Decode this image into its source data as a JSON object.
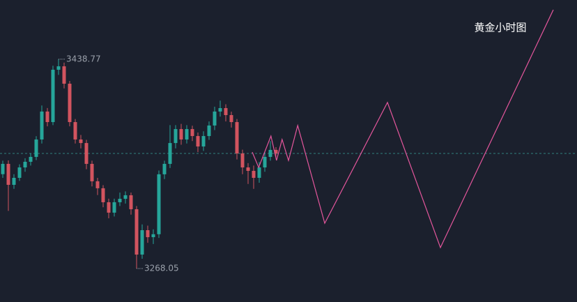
{
  "chart_data": {
    "type": "candlestick",
    "title": "黄金小时图",
    "x": [
      0,
      1,
      2,
      3,
      4,
      5,
      6,
      7,
      8,
      9,
      10,
      11,
      12,
      13,
      14,
      15,
      16,
      17,
      18,
      19,
      20,
      21,
      22,
      23,
      24,
      25,
      26,
      27,
      28,
      29,
      30,
      31,
      32,
      33,
      34,
      35,
      36,
      37,
      38,
      39,
      40,
      41,
      42,
      43,
      44,
      45,
      46,
      47,
      48,
      49
    ],
    "open": [
      3345.0,
      3353.4,
      3336.3,
      3342.0,
      3350.5,
      3355.1,
      3359.1,
      3373.3,
      3396.1,
      3387.5,
      3430.2,
      3433.0,
      3418.8,
      3387.5,
      3373.3,
      3370.4,
      3353.4,
      3339.2,
      3333.5,
      3322.1,
      3313.6,
      3322.1,
      3324.9,
      3327.8,
      3316.4,
      3279.4,
      3299.3,
      3293.6,
      3296.0,
      3344.9,
      3353.4,
      3370.4,
      3381.8,
      3373.3,
      3381.8,
      3376.1,
      3367.6,
      3376.1,
      3384.7,
      3396.1,
      3398.9,
      3393.2,
      3387.5,
      3361.9,
      3350.5,
      3347.7,
      3342.0,
      3350.5,
      3359.1,
      3364.8
    ],
    "high": [
      3356.0,
      3356.2,
      3345.0,
      3353.0,
      3358.0,
      3362.0,
      3376.0,
      3401.0,
      3399.0,
      3433.5,
      3438.77,
      3436.0,
      3421.0,
      3390.0,
      3377.0,
      3373.0,
      3356.0,
      3342.0,
      3336.0,
      3325.0,
      3325.0,
      3330.0,
      3331.0,
      3330.0,
      3319.0,
      3304.0,
      3303.0,
      3300.0,
      3348.0,
      3356.0,
      3385.0,
      3385.0,
      3386.0,
      3385.0,
      3384.5,
      3379.0,
      3380.0,
      3388.0,
      3400.0,
      3405.0,
      3402.0,
      3396.0,
      3390.0,
      3365.0,
      3354.0,
      3352.0,
      3355.0,
      3363.0,
      3372.0,
      3367.0
    ],
    "low": [
      3342.0,
      3315.0,
      3333.0,
      3339.5,
      3347.0,
      3352.0,
      3356.5,
      3370.0,
      3384.0,
      3385.0,
      3426.0,
      3415.0,
      3384.0,
      3370.0,
      3366.0,
      3349.0,
      3335.0,
      3328.0,
      3318.0,
      3309.0,
      3310.5,
      3319.0,
      3321.0,
      3312.0,
      3268.05,
      3276.0,
      3289.0,
      3288.0,
      3293.0,
      3341.0,
      3350.0,
      3366.0,
      3369.0,
      3370.0,
      3372.0,
      3363.0,
      3364.0,
      3373.0,
      3381.0,
      3392.0,
      3388.0,
      3383.0,
      3357.0,
      3345.0,
      3337.0,
      3333.0,
      3338.0,
      3347.0,
      3356.0,
      3358.0
    ],
    "close": [
      3353.4,
      3336.3,
      3342.0,
      3350.5,
      3355.1,
      3359.1,
      3373.3,
      3396.1,
      3387.5,
      3430.2,
      3433.0,
      3418.8,
      3387.5,
      3373.3,
      3370.4,
      3353.4,
      3339.2,
      3333.5,
      3322.1,
      3313.6,
      3322.1,
      3324.9,
      3327.8,
      3316.4,
      3279.4,
      3299.3,
      3293.6,
      3296.0,
      3344.9,
      3353.4,
      3370.4,
      3381.8,
      3373.3,
      3381.8,
      3376.1,
      3367.6,
      3376.1,
      3384.7,
      3396.1,
      3398.9,
      3393.2,
      3387.5,
      3361.9,
      3350.5,
      3347.7,
      3342.0,
      3350.5,
      3359.1,
      3364.8,
      3361.9
    ],
    "up_color": "#26a69a",
    "down_color": "#d2545f",
    "price_line": 3361.9,
    "price_line_color": "#2f7f80",
    "projection": {
      "x": [
        44.75,
        45.9,
        48.1,
        49.1,
        50.1,
        51.25,
        52.9,
        57.75,
        69,
        78.5,
        98.75
      ],
      "values": [
        3363.0,
        3350.5,
        3376.1,
        3356.2,
        3373.3,
        3356.2,
        3384.7,
        3304.9,
        3403.5,
        3285.1,
        3479.1
      ],
      "color": "#e4569c"
    },
    "xlim": [
      -0.5,
      103
    ],
    "ylim": [
      3240.7,
      3487.1
    ]
  }
}
